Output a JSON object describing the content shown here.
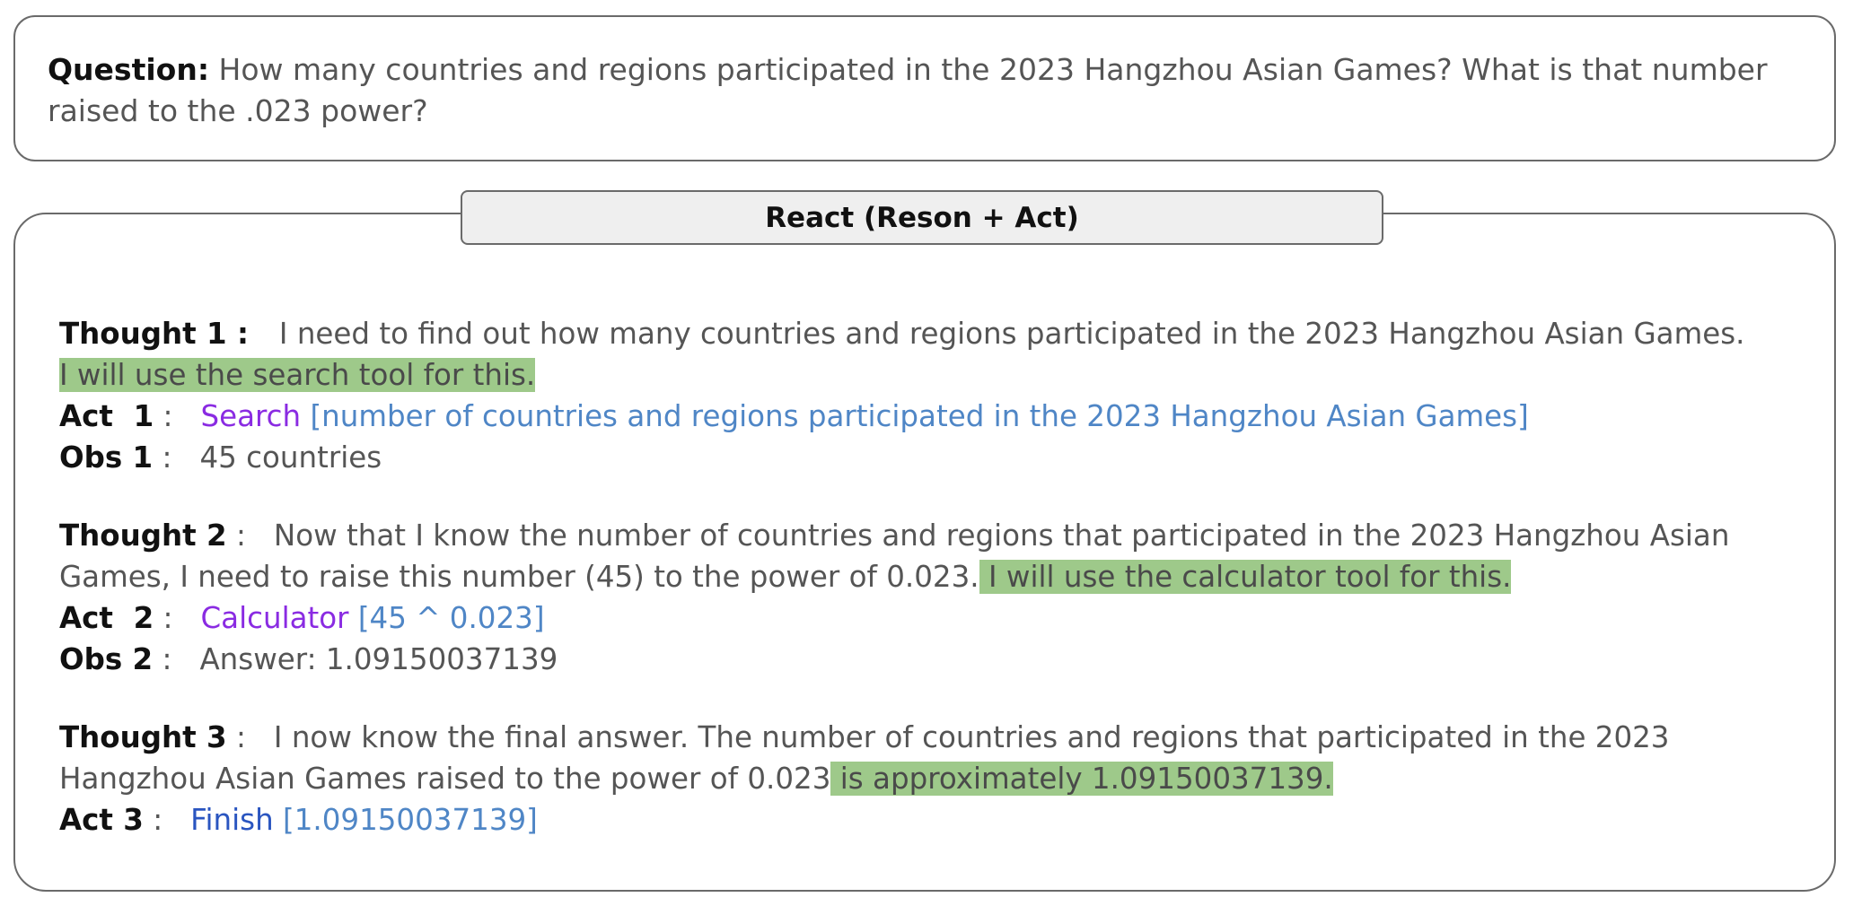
{
  "question": {
    "label": "Question:",
    "text": " How many countries and regions participated in the 2023 Hangzhou Asian Games? What is that number raised to the .023 power?"
  },
  "header": {
    "title": "React (Reson + Act)"
  },
  "step1": {
    "thought_label": "Thought 1",
    "thought_sep": " :   ",
    "thought_text": "I need to find out how many countries and regions participated in the 2023 Hangzhou Asian Games.",
    "thought_highlight": "I will use the search tool for this.",
    "act_label": "Act  1",
    "act_sep": " :   ",
    "act_tool": "Search",
    "act_arg": " [number of countries and regions participated in the 2023 Hangzhou Asian Games]",
    "obs_label": "Obs 1",
    "obs_sep": " :   ",
    "obs_text": "45 countries"
  },
  "step2": {
    "thought_label": "Thought 2",
    "thought_sep": " :   ",
    "thought_text": "Now that I know the number of countries and regions that participated in the 2023 Hangzhou Asian Games, I need to raise this number (45) to the power of 0.023.",
    "thought_highlight": " I will use the calculator tool for this.",
    "act_label": "Act  2",
    "act_sep": " :   ",
    "act_tool": "Calculator",
    "act_arg": " [45 ^ 0.023]",
    "obs_label": "Obs 2",
    "obs_sep": " :   ",
    "obs_text": "Answer: 1.09150037139"
  },
  "step3": {
    "thought_label": "Thought 3",
    "thought_sep": " :   ",
    "thought_text": "I now know the final answer.  The number of countries and regions that participated in the 2023 Hangzhou Asian Games raised to the power of 0.023",
    "thought_highlight": " is approximately 1.09150037139.",
    "act_label": "Act 3",
    "act_sep": " :   ",
    "act_tool": "Finish",
    "act_arg": " [1.09150037139]"
  },
  "colors": {
    "highlight": "#9ec98a",
    "tool_purple": "#8a2be2",
    "tool_finish": "#2a55c0",
    "argument": "#4f86c6"
  }
}
